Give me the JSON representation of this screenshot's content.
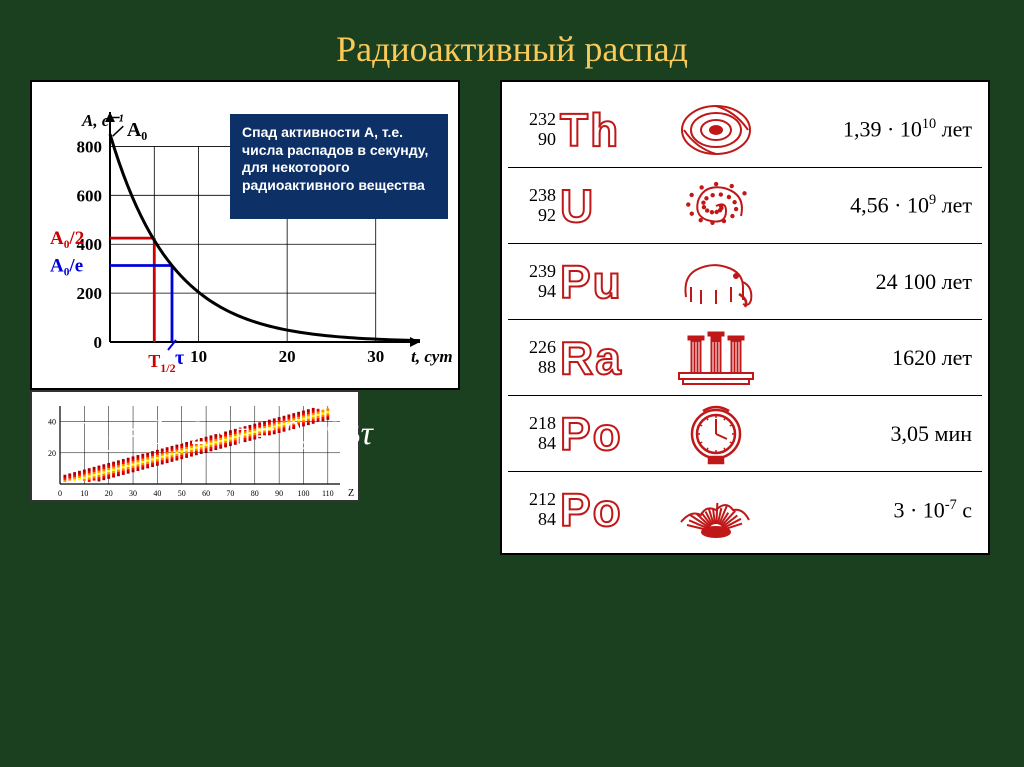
{
  "title": "Радиоактивный распад",
  "decay_chart": {
    "type": "line",
    "background_color": "#ffffff",
    "grid_color": "#000000",
    "y_axis_label": "A, c⁻¹",
    "A0_label": "A₀",
    "x_axis_label": "t, сут",
    "y_ticks": [
      0,
      200,
      400,
      600,
      800
    ],
    "x_ticks": [
      0,
      10,
      20,
      30
    ],
    "y_max": 900,
    "x_max": 35,
    "A0": 850,
    "half_label": "A₀/2",
    "e_label": "A₀/e",
    "half_value": 425,
    "e_value": 313,
    "T_half_label": "T₁/₂",
    "tau_label": "τ",
    "T_half_x": 5,
    "tau_x": 7,
    "half_color": "#cc0000",
    "e_color": "#0000dd",
    "curve_color": "#000000",
    "caption": "Спад активности А, т.е. числа распадов в секунду, для некоторого радиоактивного вещества",
    "caption_bg": "#0d3067",
    "caption_text_color": "#ffffff"
  },
  "nuclide_chart": {
    "x_ticks": [
      0,
      10,
      20,
      30,
      40,
      50,
      60,
      70,
      80,
      90,
      100,
      110
    ],
    "y_ticks": [
      20,
      40
    ],
    "x_label": "Z",
    "band_colors": [
      "#ffff00",
      "#ff8800",
      "#ff0000",
      "#aa0000"
    ],
    "grid_color": "#000000"
  },
  "formula": {
    "plain": "T₁/₂ = ln 2 · τ = 0,693τ"
  },
  "isotopes": {
    "rows": [
      {
        "mass": "232",
        "z": "90",
        "symbol": "Th",
        "halflife_html": "1,39 · 10<sup>10</sup> лет",
        "icon": "galaxy"
      },
      {
        "mass": "238",
        "z": "92",
        "symbol": "U",
        "halflife_html": "4,56 · 10<sup>9</sup> лет",
        "icon": "spiral"
      },
      {
        "mass": "239",
        "z": "94",
        "symbol": "Pu",
        "halflife_html": "24 100 лет",
        "icon": "mammoth"
      },
      {
        "mass": "226",
        "z": "88",
        "symbol": "Ra",
        "halflife_html": "1620 лет",
        "icon": "columns"
      },
      {
        "mass": "218",
        "z": "84",
        "symbol": "Po",
        "halflife_html": "3,05 мин",
        "icon": "clock"
      },
      {
        "mass": "212",
        "z": "84",
        "symbol": "Po",
        "halflife_html": "3 · 10<sup>-7</sup> с",
        "icon": "explosion"
      }
    ],
    "icon_color": "#c01818",
    "text_color": "#000000",
    "symbol_stroke": "#c01818"
  }
}
